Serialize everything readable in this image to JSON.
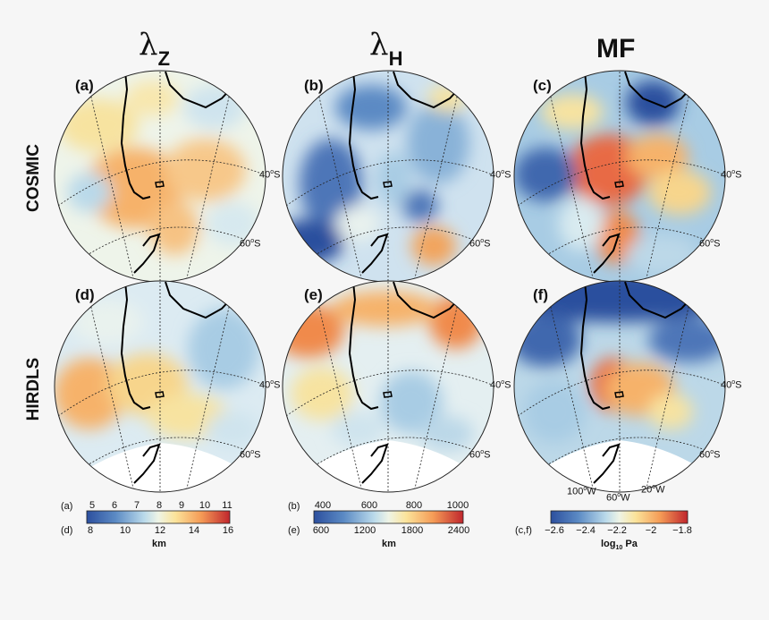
{
  "columns": {
    "lambda_z": {
      "symbol": "λ",
      "sub": "Z"
    },
    "lambda_h": {
      "symbol": "λ",
      "sub": "H"
    },
    "mf": {
      "title": "MF"
    }
  },
  "rows": {
    "cosmic": "COSMIC",
    "hirdls": "HIRDLS"
  },
  "panels": {
    "a": "(a)",
    "b": "(b)",
    "c": "(c)",
    "d": "(d)",
    "e": "(e)",
    "f": "(f)"
  },
  "lat_labels": {
    "lat40": "40",
    "lat60": "60",
    "suffix": "S"
  },
  "lon_labels": {
    "w100": "100",
    "w60": "60",
    "w20": "20",
    "suffix": "W"
  },
  "colorbars": {
    "lz": {
      "row1_label": "(a)",
      "row1_ticks": [
        "5",
        "6",
        "7",
        "8",
        "9",
        "10",
        "11"
      ],
      "row2_label": "(d)",
      "row2_ticks": [
        "8",
        "10",
        "12",
        "14",
        "16"
      ],
      "unit": "km"
    },
    "lh": {
      "row1_label": "(b)",
      "row1_ticks": [
        "400",
        "600",
        "800",
        "1000"
      ],
      "row2_label": "(e)",
      "row2_ticks": [
        "600",
        "1200",
        "1800",
        "2400"
      ],
      "unit": "km"
    },
    "mf": {
      "label": "(c,f)",
      "ticks": [
        "−2.6",
        "−2.4",
        "−2.2",
        "−2",
        "−1.8"
      ],
      "unit_base": "log",
      "unit_sub": "10",
      "unit_rest": " Pa"
    }
  },
  "colors": {
    "deep_blue": "#2c4f9e",
    "blue": "#5b8ac4",
    "light_blue": "#a8cce4",
    "pale": "#e8f2f0",
    "yellow": "#f7e9a8",
    "orange": "#f6b26b",
    "red_orange": "#e86a45",
    "red": "#c0262d",
    "land_white": "#ffffff"
  }
}
